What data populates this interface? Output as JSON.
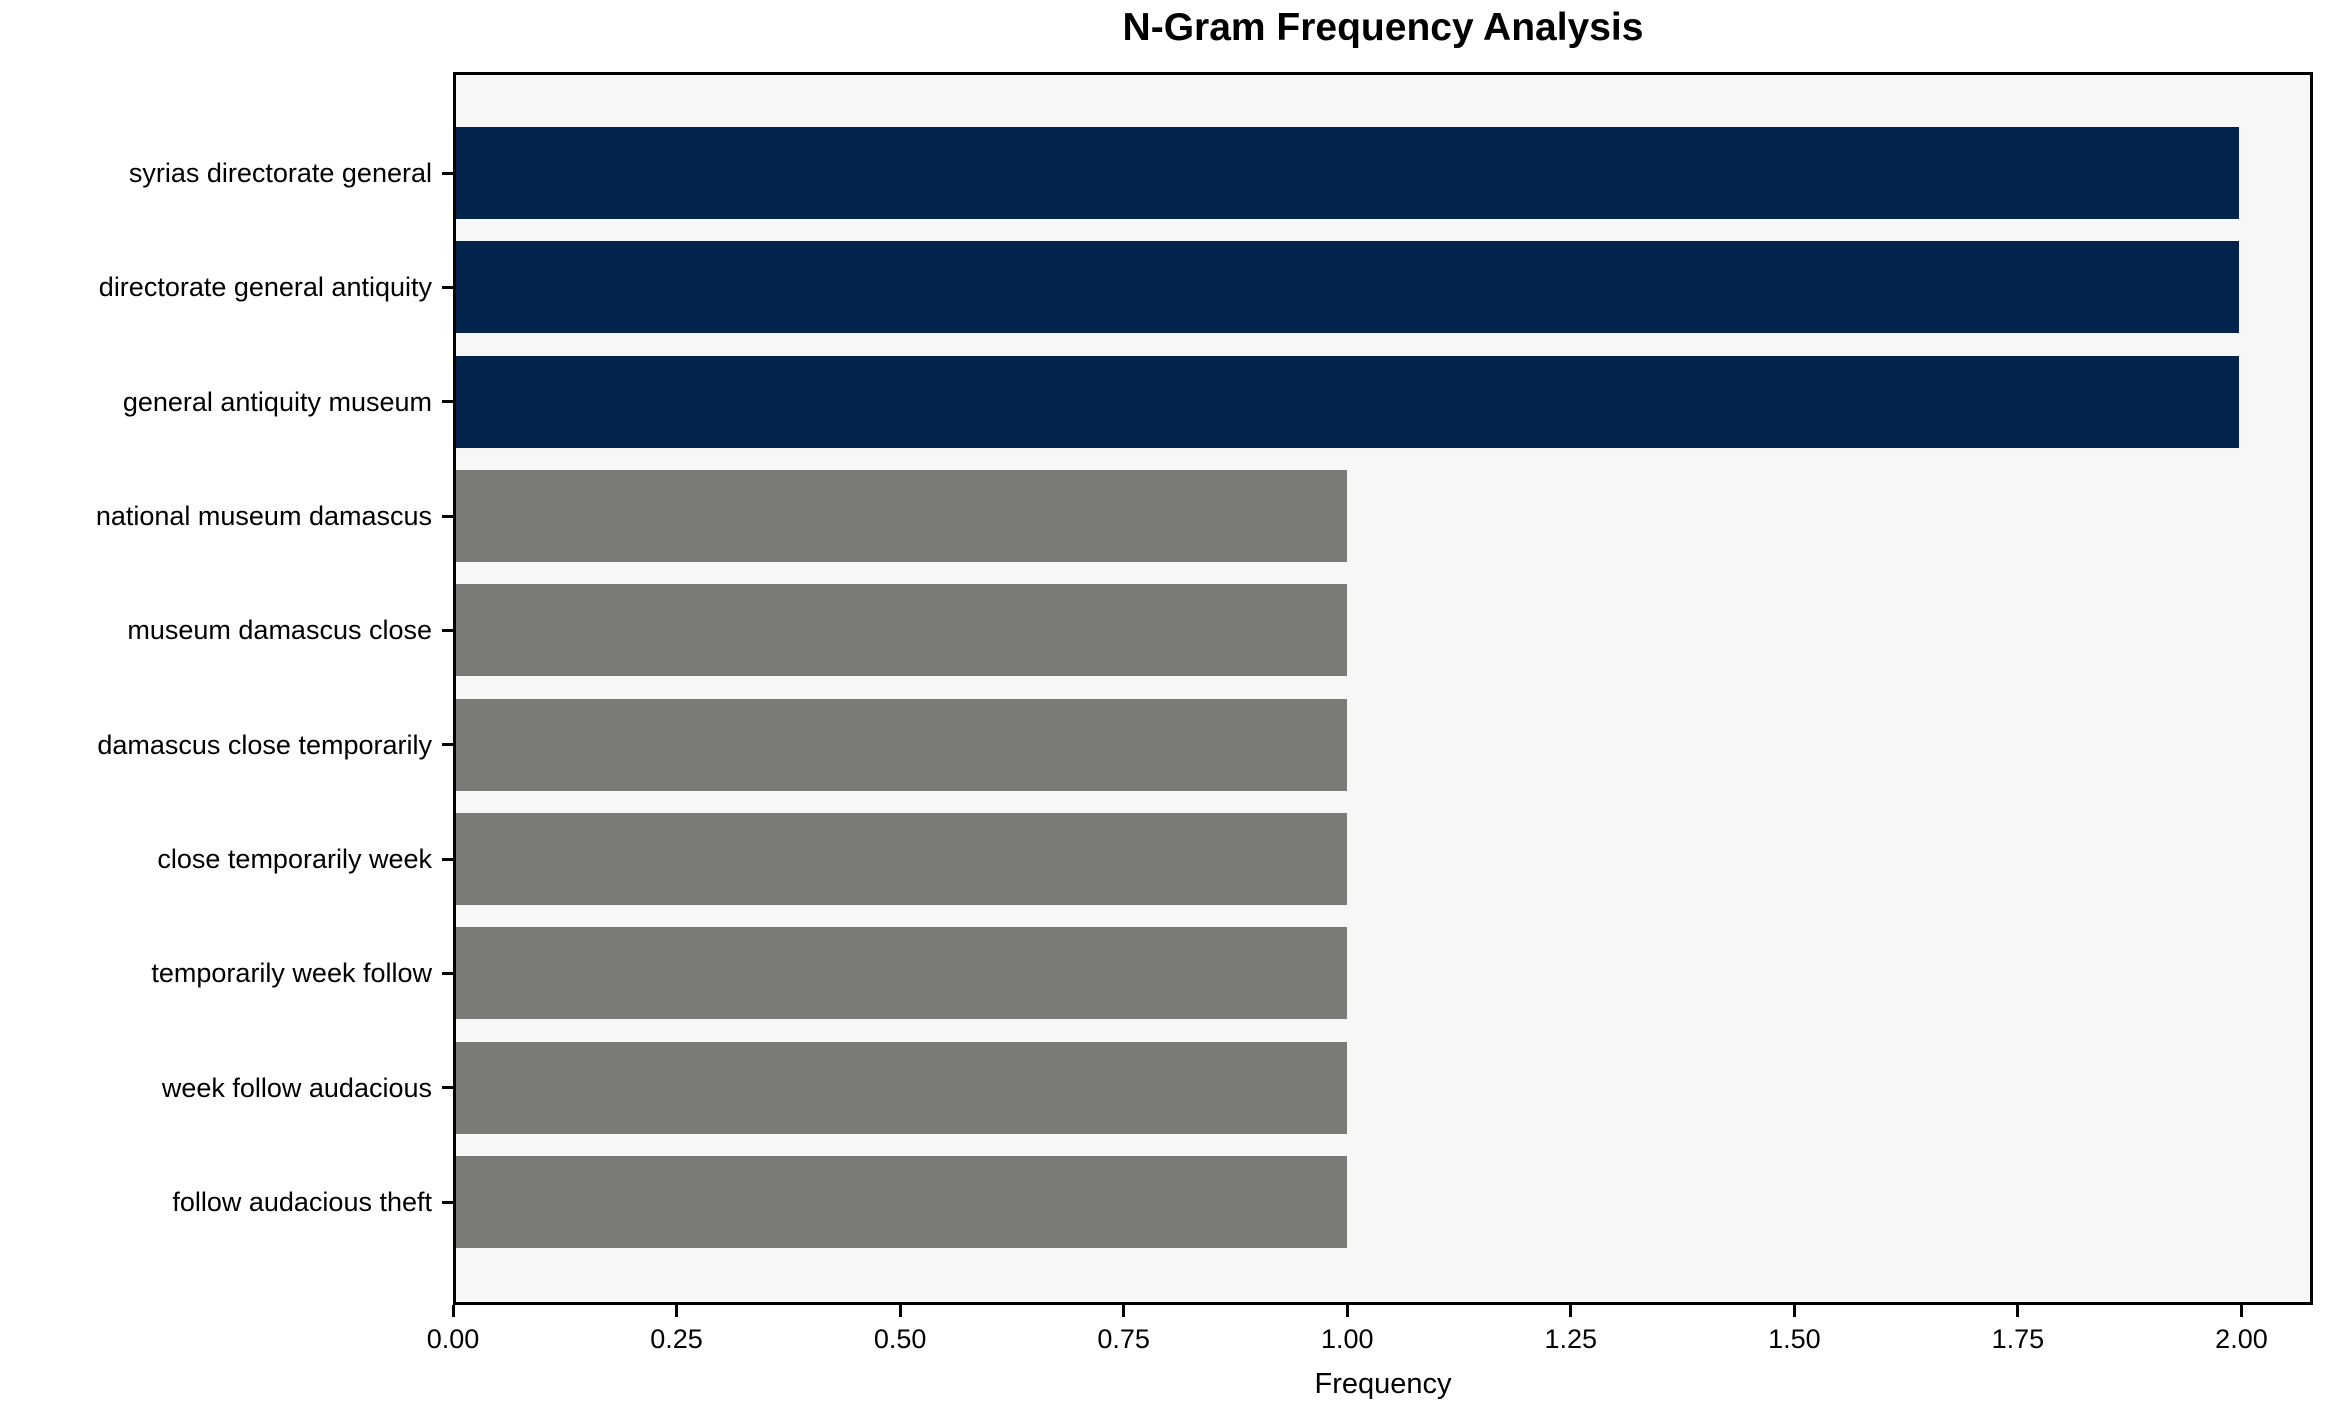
{
  "chart_data": {
    "type": "bar",
    "orientation": "horizontal",
    "title": "N-Gram Frequency Analysis",
    "xlabel": "Frequency",
    "ylabel": "",
    "categories": [
      "syrias directorate general",
      "directorate general antiquity",
      "general antiquity museum",
      "national museum damascus",
      "museum damascus close",
      "damascus close temporarily",
      "close temporarily week",
      "temporarily week follow",
      "week follow audacious",
      "follow audacious theft"
    ],
    "values": [
      2,
      2,
      2,
      1,
      1,
      1,
      1,
      1,
      1,
      1
    ],
    "bar_colors": [
      "#02234c",
      "#02234c",
      "#02234c",
      "#7a7a76",
      "#7a7a76",
      "#7a7a76",
      "#7a7a76",
      "#7a7a76",
      "#7a7a76",
      "#7a7a76"
    ],
    "x_ticks": [
      "0.00",
      "0.25",
      "0.50",
      "0.75",
      "1.00",
      "1.25",
      "1.50",
      "1.75",
      "2.00"
    ],
    "x_tick_values": [
      0,
      0.25,
      0.5,
      0.75,
      1.0,
      1.25,
      1.5,
      1.75,
      2.0
    ],
    "xlim": [
      0,
      2.08
    ],
    "grid": false,
    "legend_position": "none",
    "colors": {
      "highlight_bar": "#02234c",
      "default_bar": "#7a7a76",
      "plot_background": "#f7f7f7",
      "figure_background": "#ffffff",
      "axis": "#000000",
      "text": "#000000"
    }
  }
}
